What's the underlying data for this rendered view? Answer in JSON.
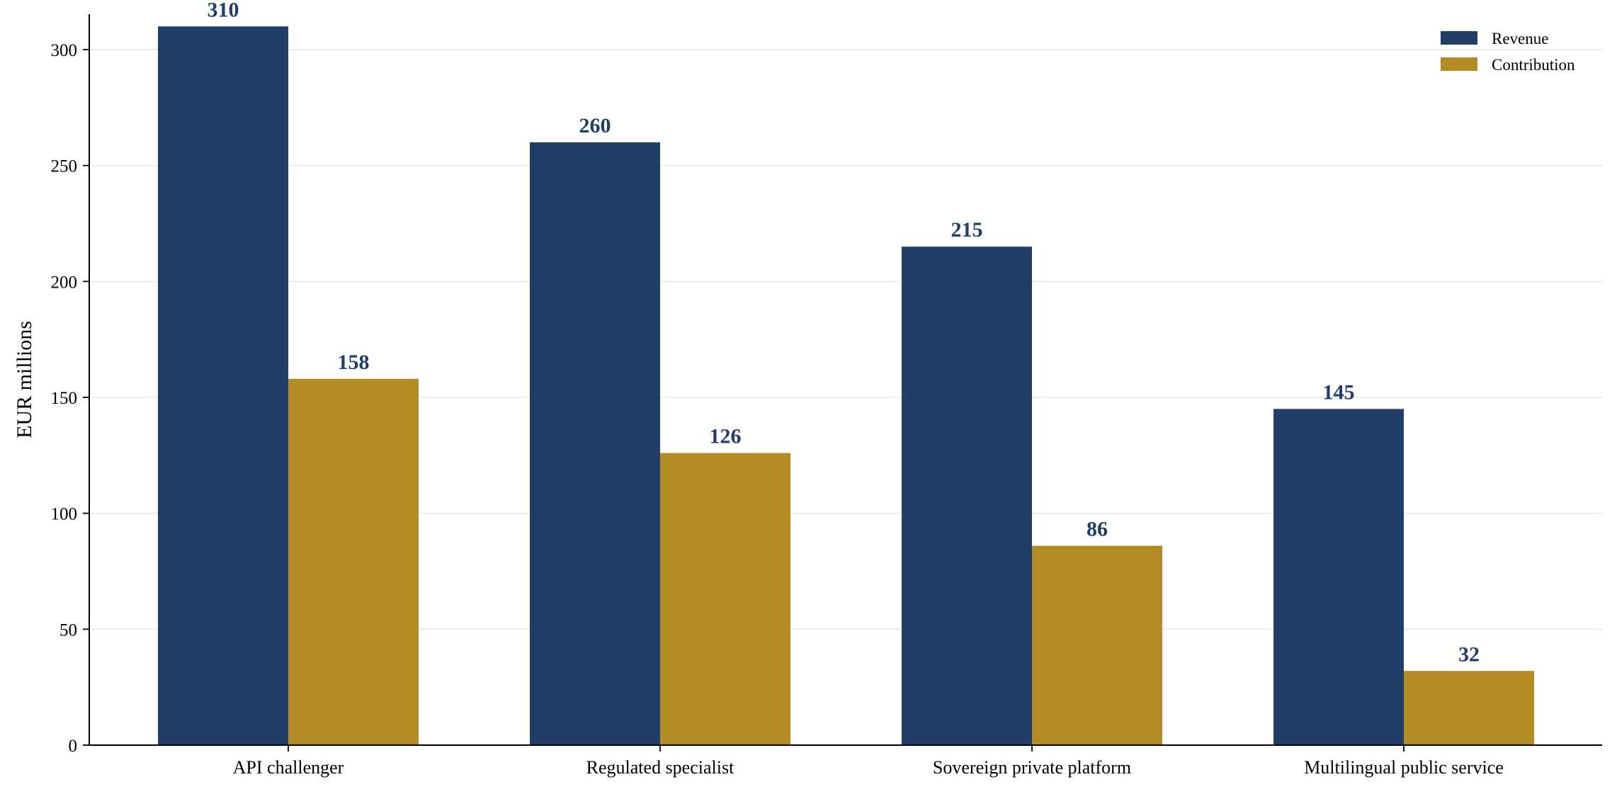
{
  "chart_data": {
    "type": "bar",
    "ylabel": "EUR millions",
    "ylim": [
      0,
      325
    ],
    "yticks": [
      0,
      50,
      100,
      150,
      200,
      250,
      300
    ],
    "grid": true,
    "legend_position": "top-right",
    "categories": [
      "API challenger",
      "Regulated specialist",
      "Sovereign private platform",
      "Multilingual public service"
    ],
    "series": [
      {
        "name": "Revenue",
        "color": "#203e67",
        "values": [
          310,
          260,
          215,
          145
        ]
      },
      {
        "name": "Contribution",
        "color": "#b38b24",
        "values": [
          158,
          126,
          86,
          32
        ]
      }
    ],
    "value_label_color": "#203e67"
  }
}
